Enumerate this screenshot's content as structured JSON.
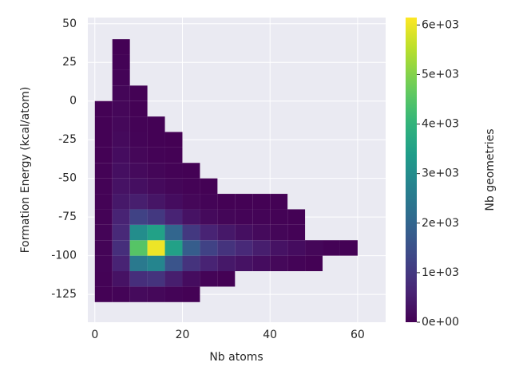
{
  "chart_data": {
    "type": "hist2d",
    "x_label": "Nb atoms",
    "y_label": "Formation Energy (kcal/atom)",
    "colorbar_label": "Nb geometries",
    "colormap": "viridis",
    "grid": true,
    "xbins": [
      0,
      4,
      8,
      12,
      16,
      20,
      24,
      28,
      32,
      36,
      40,
      44,
      48,
      52,
      56,
      60
    ],
    "ybins": [
      -130,
      -120,
      -110,
      -100,
      -90,
      -80,
      -70,
      -60,
      -50,
      -40,
      -30,
      -20,
      -10,
      0,
      10,
      20,
      30,
      40
    ],
    "counts": [
      [
        20,
        60,
        150,
        120,
        60,
        20,
        null,
        null,
        null,
        null,
        null,
        null,
        null,
        null,
        null
      ],
      [
        40,
        300,
        800,
        900,
        500,
        200,
        60,
        20,
        null,
        null,
        null,
        null,
        null,
        null,
        null
      ],
      [
        60,
        600,
        2500,
        2800,
        1600,
        900,
        600,
        400,
        300,
        200,
        120,
        60,
        20,
        null,
        null
      ],
      [
        60,
        800,
        4500,
        6000,
        3500,
        1800,
        1200,
        900,
        700,
        500,
        300,
        200,
        100,
        40,
        10
      ],
      [
        50,
        700,
        3000,
        3500,
        2000,
        1000,
        600,
        400,
        250,
        150,
        80,
        30,
        null,
        null,
        null
      ],
      [
        40,
        600,
        1200,
        1000,
        600,
        300,
        150,
        80,
        60,
        50,
        40,
        20,
        null,
        null,
        null
      ],
      [
        30,
        400,
        500,
        350,
        200,
        100,
        50,
        20,
        20,
        20,
        20,
        null,
        null,
        null,
        null
      ],
      [
        30,
        300,
        250,
        150,
        80,
        30,
        10,
        null,
        null,
        null,
        null,
        null,
        null,
        null,
        null
      ],
      [
        30,
        250,
        150,
        80,
        30,
        10,
        null,
        null,
        null,
        null,
        null,
        null,
        null,
        null,
        null
      ],
      [
        20,
        200,
        100,
        40,
        10,
        null,
        null,
        null,
        null,
        null,
        null,
        null,
        null,
        null,
        null
      ],
      [
        20,
        150,
        60,
        20,
        5,
        null,
        null,
        null,
        null,
        null,
        null,
        null,
        null,
        null,
        null
      ],
      [
        15,
        120,
        40,
        10,
        null,
        null,
        null,
        null,
        null,
        null,
        null,
        null,
        null,
        null,
        null
      ],
      [
        10,
        100,
        20,
        null,
        null,
        null,
        null,
        null,
        null,
        null,
        null,
        null,
        null,
        null,
        null
      ],
      [
        null,
        80,
        10,
        null,
        null,
        null,
        null,
        null,
        null,
        null,
        null,
        null,
        null,
        null,
        null
      ],
      [
        null,
        50,
        null,
        null,
        null,
        null,
        null,
        null,
        null,
        null,
        null,
        null,
        null,
        null,
        null
      ],
      [
        null,
        30,
        null,
        null,
        null,
        null,
        null,
        null,
        null,
        null,
        null,
        null,
        null,
        null,
        null
      ],
      [
        null,
        10,
        null,
        null,
        null,
        null,
        null,
        null,
        null,
        null,
        null,
        null,
        null,
        null,
        null
      ]
    ],
    "xlim": [
      -1.6,
      66.4
    ],
    "xticks": [
      0,
      20,
      40,
      60
    ],
    "ylim": [
      -143,
      54
    ],
    "yticks": [
      -125,
      -100,
      -75,
      -50,
      -25,
      0,
      25,
      50
    ],
    "clim": [
      0,
      6150
    ],
    "cticks": [
      {
        "value": 0,
        "label": "0e+00"
      },
      {
        "value": 1000,
        "label": "1e+03"
      },
      {
        "value": 2000,
        "label": "2e+03"
      },
      {
        "value": 3000,
        "label": "3e+03"
      },
      {
        "value": 4000,
        "label": "4e+03"
      },
      {
        "value": 5000,
        "label": "5e+03"
      },
      {
        "value": 6000,
        "label": "6e+03"
      }
    ]
  }
}
